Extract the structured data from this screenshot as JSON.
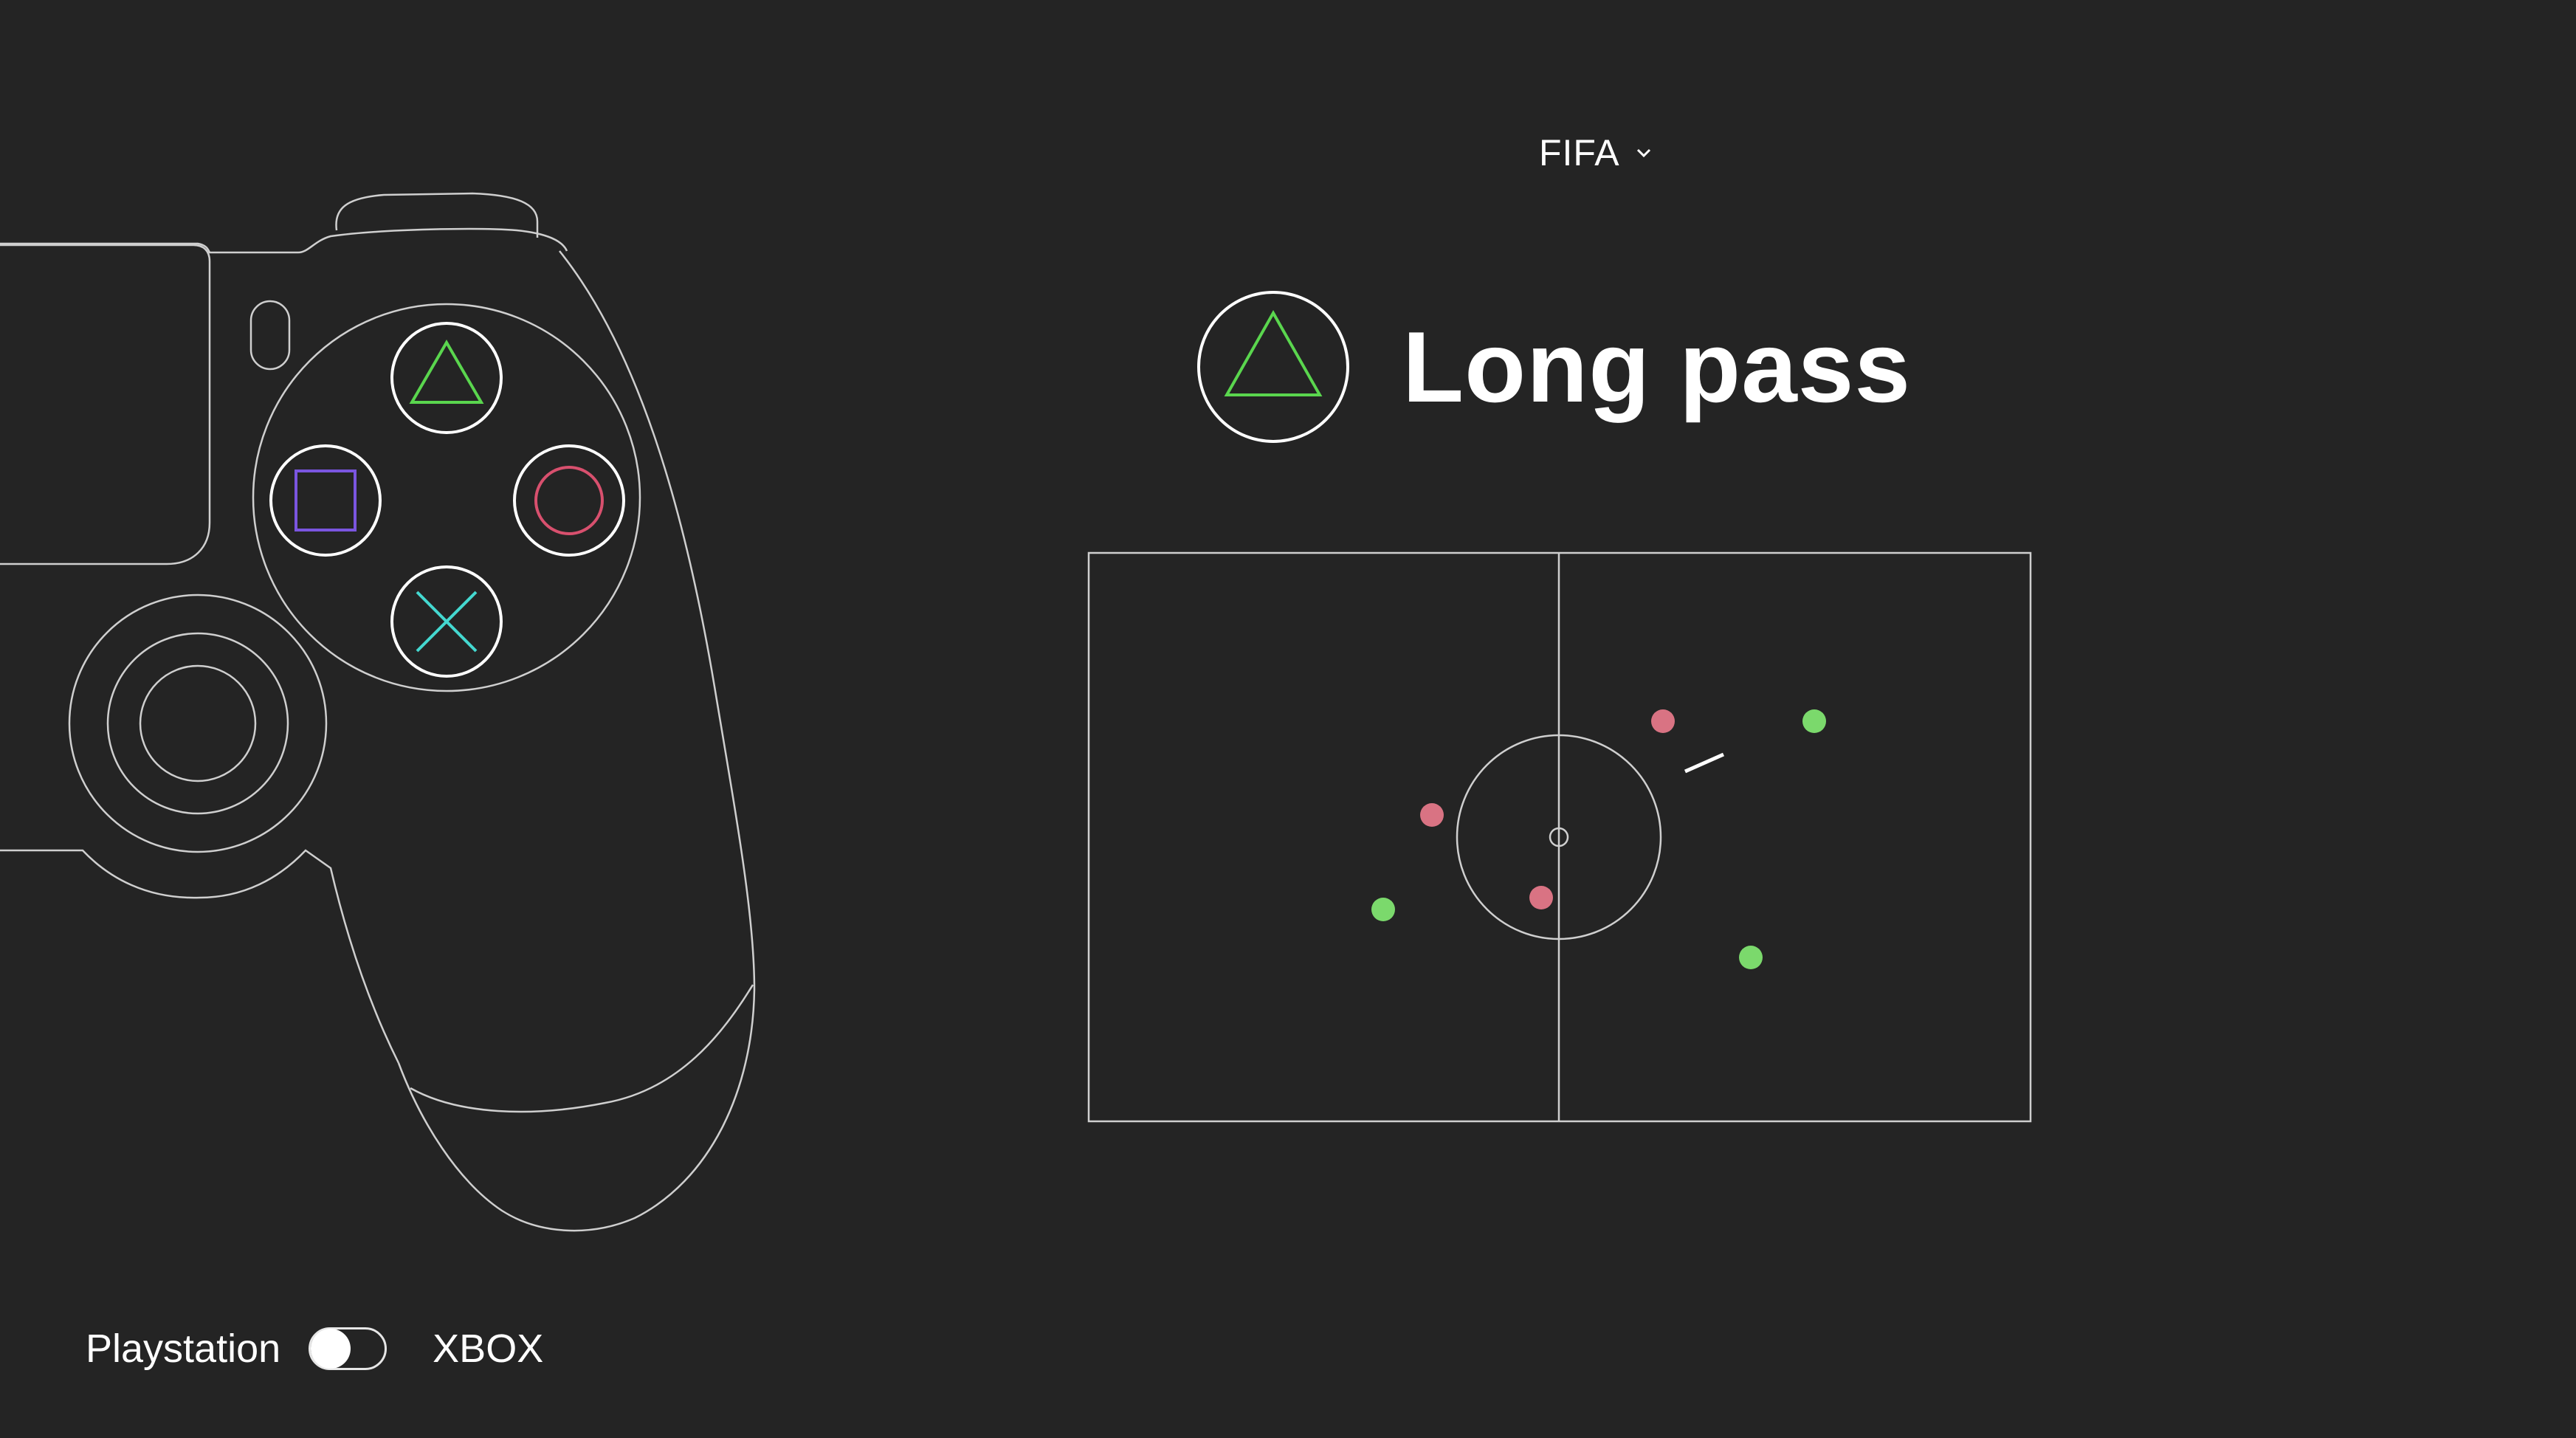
{
  "game_selector": {
    "label": "FIFA",
    "icon": "chevron-down-icon"
  },
  "action": {
    "button_icon": "triangle-icon",
    "label": "Long pass"
  },
  "controller": {
    "buttons": [
      {
        "name": "triangle",
        "color": "#5ad64e"
      },
      {
        "name": "square",
        "color": "#7a55e0"
      },
      {
        "name": "circle",
        "color": "#d8506e"
      },
      {
        "name": "cross",
        "color": "#44d8d0"
      }
    ]
  },
  "pitch": {
    "players_red": [
      {
        "color": "#d97383"
      },
      {
        "color": "#d97383"
      },
      {
        "color": "#d97383"
      }
    ],
    "players_green": [
      {
        "color": "#7bd96c"
      },
      {
        "color": "#7bd96c"
      },
      {
        "color": "#7bd96c"
      }
    ]
  },
  "platform_toggle": {
    "left_label": "Playstation",
    "right_label": "XBOX",
    "state": "Playstation"
  },
  "colors": {
    "background": "#242424",
    "line": "#cfcfcf",
    "text": "#ffffff"
  }
}
